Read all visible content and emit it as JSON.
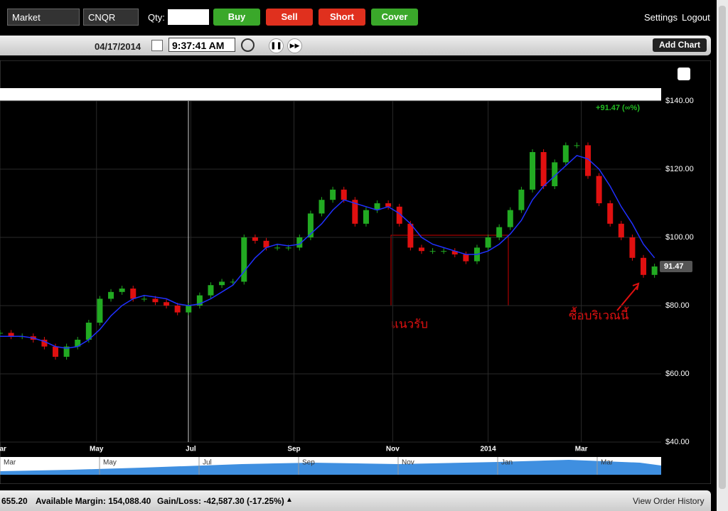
{
  "toolbar": {
    "order_type": "Market",
    "symbol": "CNQR",
    "qty_label": "Qty:",
    "buttons": [
      "Buy",
      "Sell",
      "Short",
      "Cover"
    ],
    "links": [
      "Settings",
      "Logout"
    ]
  },
  "controls": {
    "date": "04/17/2014",
    "time": "9:37:41 AM",
    "add_chart": "Add Chart"
  },
  "chart_data": {
    "type": "candlestick",
    "series": [
      {
        "name": "CNQR",
        "color": "#22aa22",
        "down_color": "#e01010",
        "values": [
          72,
          71,
          71,
          70,
          68,
          65,
          68,
          70,
          75,
          82,
          84,
          85,
          82,
          82,
          81,
          80,
          78,
          80,
          83,
          86,
          87,
          87,
          100,
          99,
          97,
          97,
          97,
          100,
          107,
          111,
          114,
          111,
          104,
          108,
          110,
          109,
          104,
          97,
          96,
          96,
          96,
          95,
          93,
          97,
          100,
          103,
          108,
          114,
          125,
          115,
          122,
          127,
          127,
          118,
          110,
          104,
          100,
          94,
          89,
          91.47
        ]
      },
      {
        "name": "MA",
        "color": "#2030ff",
        "values": [
          71,
          71,
          71,
          70.5,
          69.5,
          68,
          67.5,
          68,
          70,
          73,
          77,
          80,
          82,
          83,
          82.5,
          82,
          80.5,
          80,
          80.5,
          82,
          84,
          86,
          90,
          94,
          97,
          98,
          97.5,
          98,
          101,
          104,
          108,
          111,
          110,
          109,
          108,
          109,
          107,
          104,
          100,
          98,
          97,
          96,
          95,
          95,
          96,
          98,
          101,
          105,
          111,
          115,
          118,
          121,
          124,
          123,
          120,
          115,
          109,
          104,
          98,
          94
        ]
      }
    ],
    "xlim": [
      0,
      59.6
    ],
    "xticks": [
      {
        "value": 0,
        "label": "Mar"
      },
      {
        "value": 8.7,
        "label": "May"
      },
      {
        "value": 17.2,
        "label": "Jul"
      },
      {
        "value": 26.5,
        "label": "Sep"
      },
      {
        "value": 35.4,
        "label": "Nov"
      },
      {
        "value": 44,
        "label": "2014"
      },
      {
        "value": 52.4,
        "label": "Mar"
      }
    ],
    "ylim": [
      40,
      140
    ],
    "yticks": [
      {
        "value": 140,
        "label": "$140.00"
      },
      {
        "value": 120,
        "label": "$120.00"
      },
      {
        "value": 100,
        "label": "$100.00"
      },
      {
        "value": 80,
        "label": "$80.00"
      },
      {
        "value": 60,
        "label": "$60.00"
      },
      {
        "value": 40,
        "label": "$40.00"
      }
    ],
    "grid": true,
    "change_label": "+91.47 (∞%)",
    "last_label": "91.47",
    "annotations": [
      "แนวรับ",
      "ซื้อบริเวณนี้"
    ],
    "navigator_labels": [
      "Mar",
      "May",
      "Jul",
      "Sep",
      "Nov",
      "Jan",
      "Mar"
    ]
  },
  "footer": {
    "balance": "655.20",
    "margin": "Available Margin: 154,088.40",
    "gain": "Gain/Loss: -42,587.30 (-17.25%)",
    "history": "View Order History"
  }
}
